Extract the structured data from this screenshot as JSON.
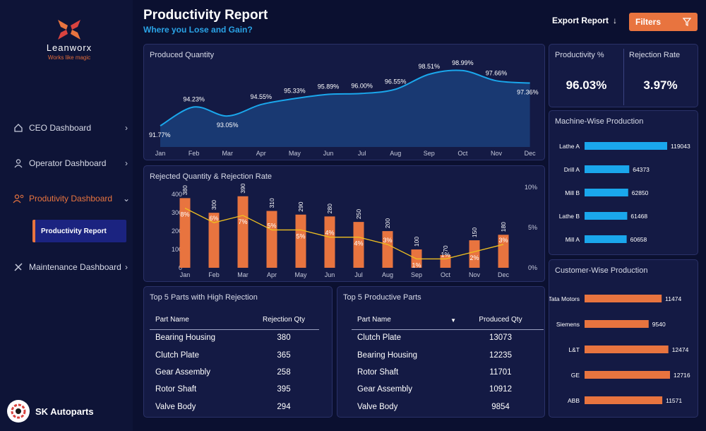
{
  "brand": {
    "name": "Leanworx",
    "tagline": "Works like magic"
  },
  "nav": {
    "items": [
      {
        "label": "CEO Dashboard"
      },
      {
        "label": "Operator Dashboard"
      },
      {
        "label": "Produtivity Dashboard"
      },
      {
        "label": "Maintenance Dashboard"
      }
    ],
    "sub_item": "Productivity Report"
  },
  "company": {
    "name": "SK Autoparts"
  },
  "header": {
    "title": "Productivity Report",
    "subtitle": "Where you Lose and Gain?",
    "export_label": "Export Report",
    "filters_label": "Filters"
  },
  "kpis": {
    "productivity": {
      "label": "Productivity %",
      "value": "96.03%"
    },
    "rejection": {
      "label": "Rejection Rate",
      "value": "3.97%"
    }
  },
  "colors": {
    "accent": "#e8743f",
    "blue": "#1aa7ec",
    "line": "#f0c020",
    "bg": "#0b1030",
    "card": "#141a44"
  },
  "chart_data": [
    {
      "type": "area",
      "title": "Produced Quantity",
      "categories": [
        "Jan",
        "Feb",
        "Mar",
        "Apr",
        "May",
        "Jun",
        "Jul",
        "Aug",
        "Sep",
        "Oct",
        "Nov",
        "Dec"
      ],
      "values": [
        91.77,
        94.23,
        93.05,
        94.55,
        95.33,
        95.89,
        96.0,
        96.55,
        98.51,
        98.99,
        97.66,
        97.36
      ],
      "labels": [
        "91.77%",
        "94.23%",
        "93.05%",
        "94.55%",
        "95.33%",
        "95.89%",
        "96.00%",
        "96.55%",
        "98.51%",
        "98.99%",
        "97.66%",
        "97.36%"
      ],
      "ylim": [
        89,
        100
      ]
    },
    {
      "type": "bar",
      "title": "Rejected Quantity & Rejection Rate",
      "categories": [
        "Jan",
        "Feb",
        "Mar",
        "Apr",
        "May",
        "Jun",
        "Jul",
        "Aug",
        "Sep",
        "Oct",
        "Nov",
        "Dec"
      ],
      "series": [
        {
          "values": [
            380,
            300,
            390,
            310,
            290,
            280,
            250,
            200,
            100,
            70,
            150,
            180
          ]
        },
        {
          "values": [
            8,
            6,
            7,
            5,
            5,
            4,
            4,
            3,
            1,
            1,
            2,
            3
          ]
        }
      ],
      "rate_labels": [
        "8%",
        "6%",
        "7%",
        "5%",
        "5%",
        "4%",
        "4%",
        "3%",
        "1%",
        "1%",
        "2%",
        "3%"
      ],
      "y_ticks": [
        "0",
        "100",
        "200",
        "300",
        "400"
      ],
      "y2_ticks": [
        "0%",
        "5%",
        "10%"
      ],
      "ylim": [
        0,
        420
      ],
      "y2lim": [
        0,
        10
      ]
    },
    {
      "type": "bar",
      "title": "Machine-Wise Production",
      "categories": [
        "Lathe A",
        "Drill A",
        "Mill B",
        "Lathe B",
        "Mill A"
      ],
      "values": [
        119043,
        64373,
        62850,
        61468,
        60658
      ],
      "color": "#1aa7ec"
    },
    {
      "type": "bar",
      "title": "Customer-Wise Production",
      "categories": [
        "Tata Motors",
        "Siemens",
        "L&T",
        "GE",
        "ABB"
      ],
      "values": [
        11474,
        9540,
        12474,
        12716,
        11571
      ],
      "color": "#e8743f"
    }
  ],
  "rejection_table": {
    "title": "Top 5 Parts with High Rejection",
    "headers": [
      "Part Name",
      "Rejection Qty"
    ],
    "rows": [
      [
        "Bearing Housing",
        "380"
      ],
      [
        "Clutch Plate",
        "365"
      ],
      [
        "Gear Assembly",
        "258"
      ],
      [
        "Rotor Shaft",
        "395"
      ],
      [
        "Valve Body",
        "294"
      ]
    ]
  },
  "productive_table": {
    "title": "Top 5 Productive Parts",
    "headers": [
      "Part Name",
      "Produced Qty"
    ],
    "rows": [
      [
        "Clutch Plate",
        "13073"
      ],
      [
        "Bearing Housing",
        "12235"
      ],
      [
        "Rotor Shaft",
        "11701"
      ],
      [
        "Gear Assembly",
        "10912"
      ],
      [
        "Valve Body",
        "9854"
      ]
    ]
  }
}
